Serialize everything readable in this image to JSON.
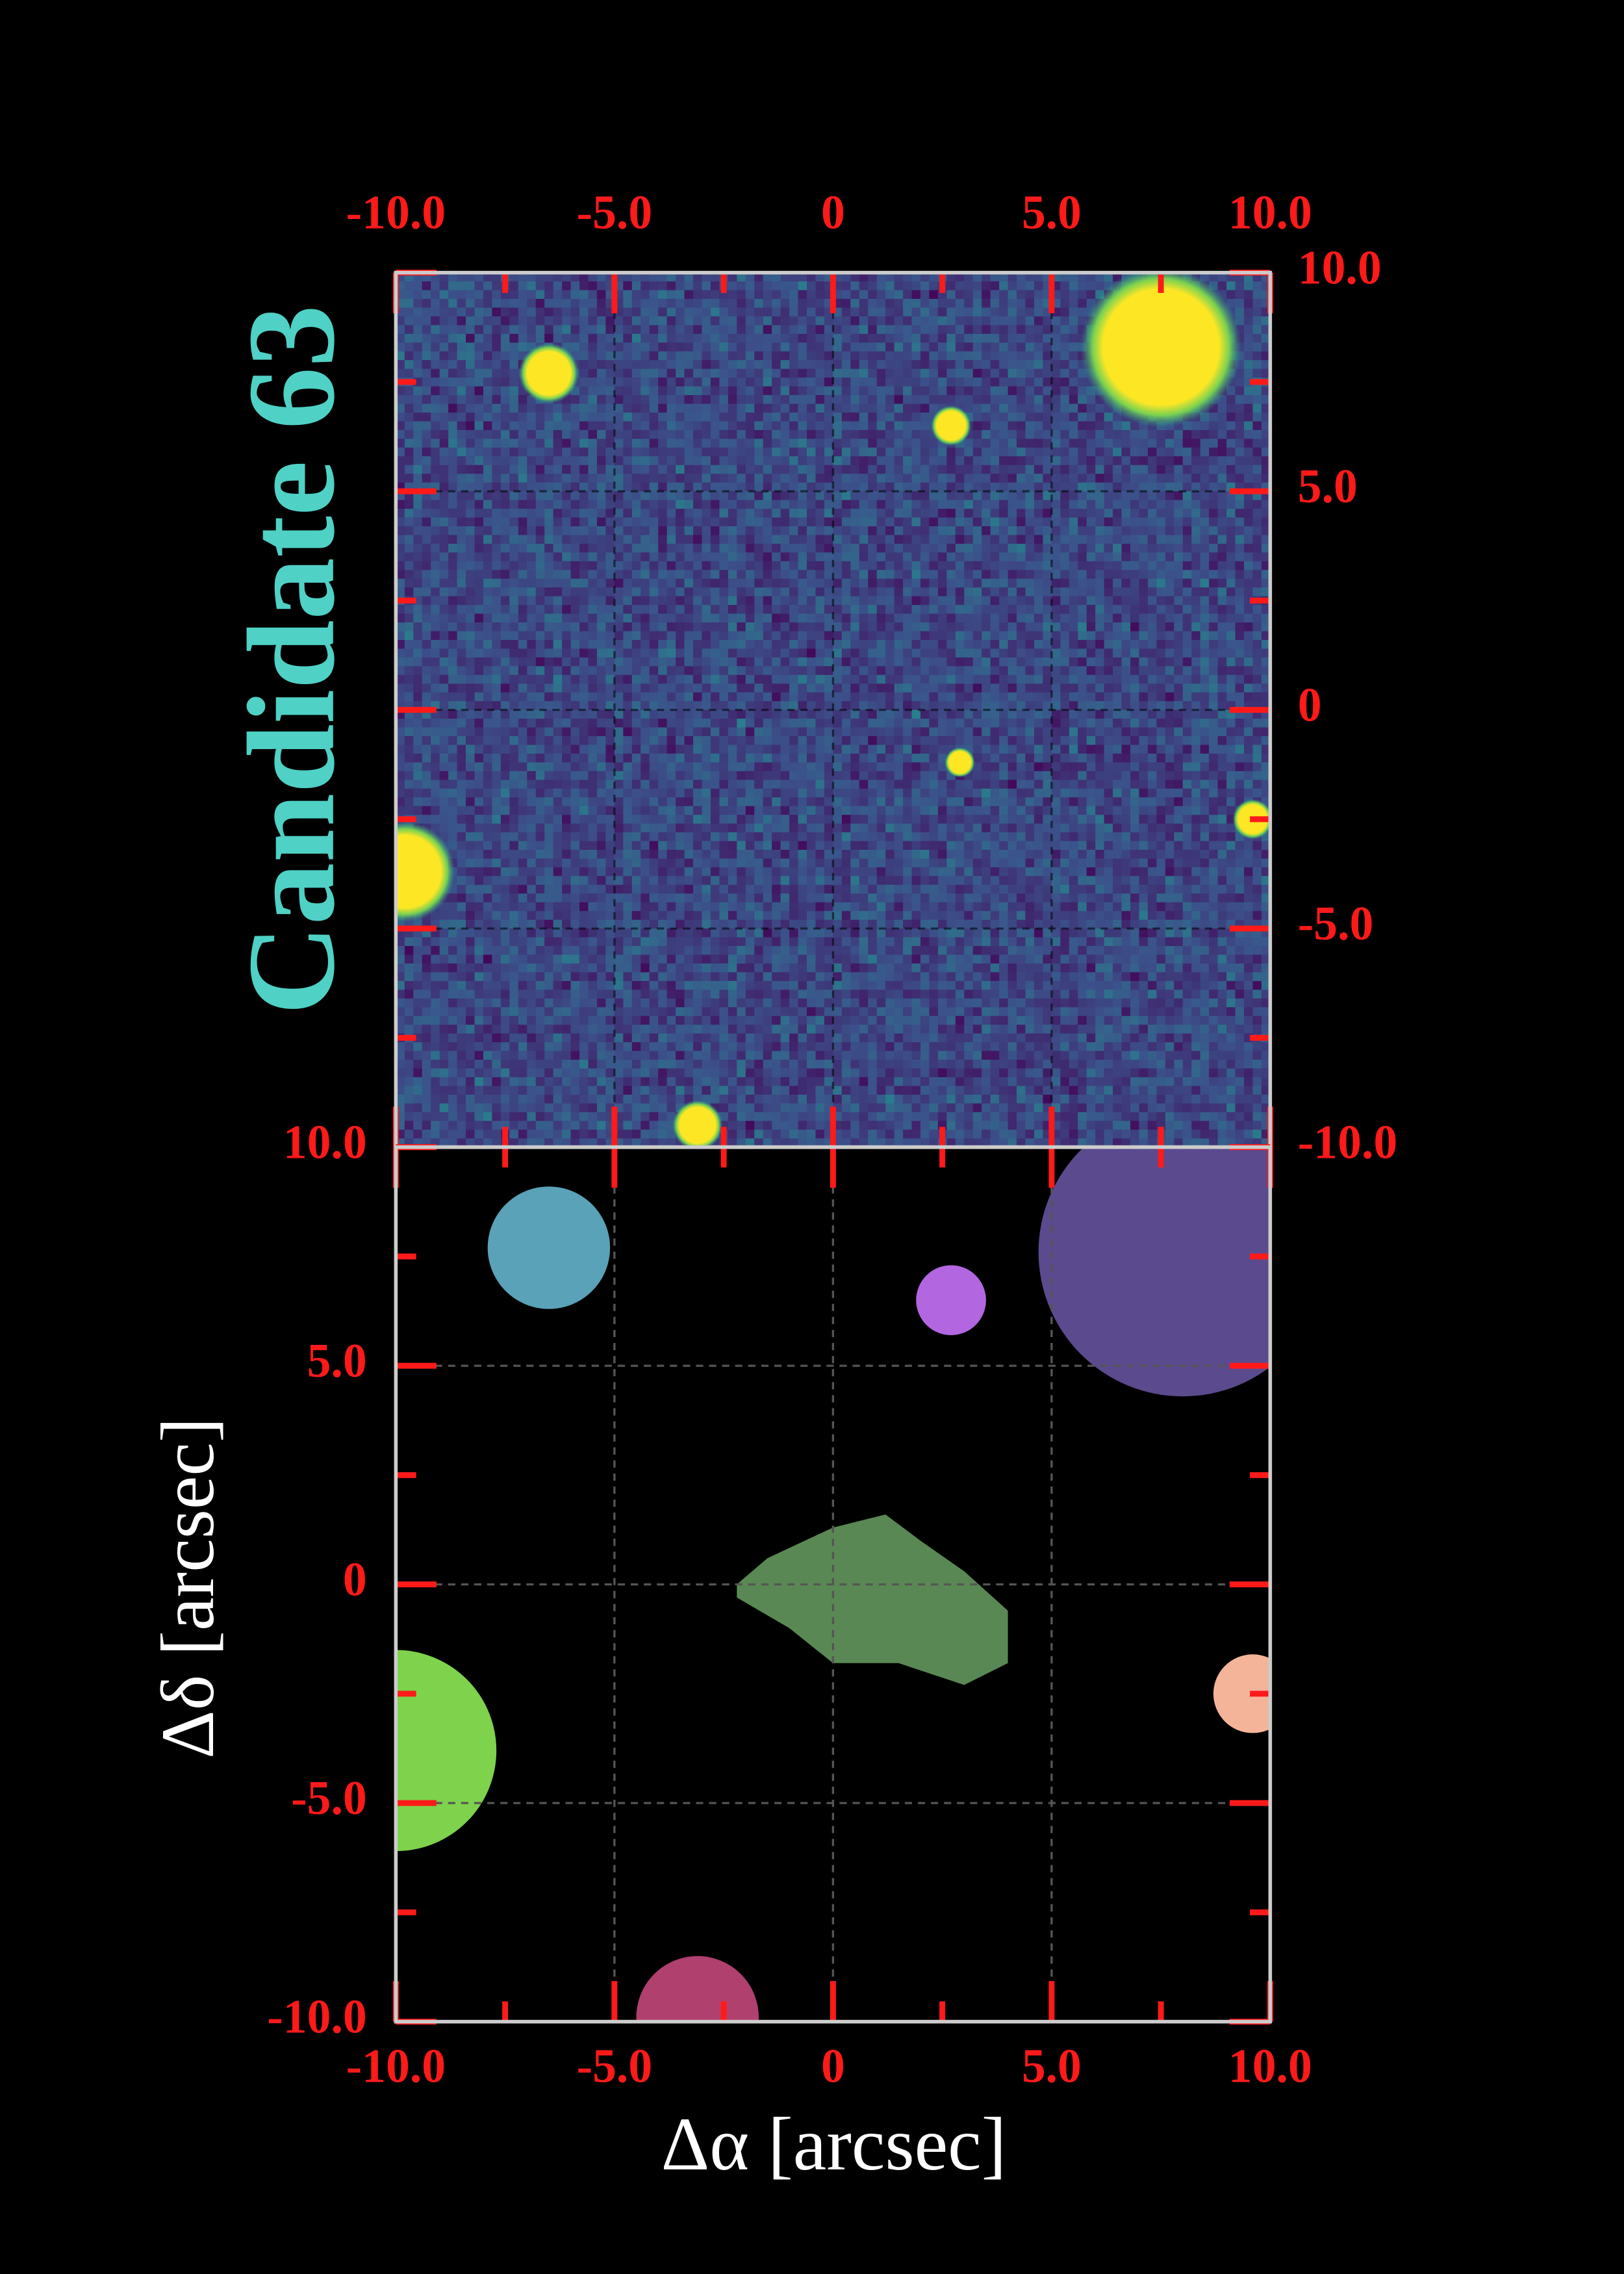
{
  "chart_data": [
    {
      "type": "image",
      "title": "Candidate 63",
      "xlim": [
        -10,
        10
      ],
      "ylim": [
        -10,
        10
      ],
      "xticks": [
        {
          "value": -10,
          "label": "-10.0"
        },
        {
          "value": -5,
          "label": "-5.0"
        },
        0,
        {
          "value": 5,
          "label": "5.0"
        },
        {
          "value": 10,
          "label": "10.0"
        }
      ],
      "yticks": [
        {
          "value": -10,
          "label": "-10.0"
        },
        {
          "value": -5,
          "label": "-5.0"
        },
        0,
        {
          "value": 5,
          "label": "5.0"
        },
        {
          "value": 10,
          "label": "10.0"
        }
      ],
      "minor_ticks": [
        -7.5,
        -2.5,
        2.5,
        7.5
      ],
      "grid": true,
      "title_color": "#4fd1c5",
      "tick_color": "#ff1a1a",
      "sources": [
        {
          "x": 7.5,
          "y": 8.3,
          "r": 1.6
        },
        {
          "x": -6.5,
          "y": 7.7,
          "r": 0.6
        },
        {
          "x": 2.7,
          "y": 6.5,
          "r": 0.4
        },
        {
          "x": -9.8,
          "y": -3.7,
          "r": 1.0
        },
        {
          "x": 9.6,
          "y": -2.5,
          "r": 0.4
        },
        {
          "x": -3.1,
          "y": -9.5,
          "r": 0.5
        },
        {
          "x": 2.9,
          "y": -1.2,
          "r": 0.3
        }
      ]
    },
    {
      "type": "segmentation",
      "xlabel": "Δα [arcsec]",
      "ylabel": "Δδ [arcsec]",
      "xlim": [
        -10,
        10
      ],
      "ylim": [
        -10,
        10
      ],
      "xticks": [
        {
          "value": -10,
          "label": "-10.0"
        },
        {
          "value": -5,
          "label": "-5.0"
        },
        0,
        {
          "value": 5,
          "label": "5.0"
        },
        {
          "value": 10,
          "label": "10.0"
        }
      ],
      "yticks": [
        {
          "value": -10,
          "label": "-10.0"
        },
        {
          "value": -5,
          "label": "-5.0"
        },
        0,
        {
          "value": 5,
          "label": "5.0"
        },
        {
          "value": 10,
          "label": "10.0"
        }
      ],
      "minor_ticks": [
        -7.5,
        -2.5,
        2.5,
        7.5
      ],
      "grid": true,
      "tick_color": "#ff1a1a",
      "segments": [
        {
          "x": -6.5,
          "y": 7.7,
          "r": 1.4,
          "color": "#5aa2b8"
        },
        {
          "x": 8.0,
          "y": 7.6,
          "r": 3.3,
          "color": "#5b4a8e"
        },
        {
          "x": 2.7,
          "y": 6.5,
          "r": 0.8,
          "color": "#b266e0"
        },
        {
          "x": -10.0,
          "y": -3.8,
          "r": 2.3,
          "color": "#7ed24c"
        },
        {
          "x": 9.6,
          "y": -2.5,
          "r": 0.9,
          "color": "#f4b49a"
        },
        {
          "x": -3.1,
          "y": -9.9,
          "r": 1.4,
          "color": "#b0406e"
        },
        {
          "color": "#5a8854",
          "points": [
            [
              -2.2,
              0
            ],
            [
              -1.5,
              0.6
            ],
            [
              0,
              1.3
            ],
            [
              1.2,
              1.6
            ],
            [
              2,
              1
            ],
            [
              3,
              0.3
            ],
            [
              4,
              -0.6
            ],
            [
              4,
              -1.8
            ],
            [
              3,
              -2.3
            ],
            [
              1.5,
              -1.8
            ],
            [
              0,
              -1.8
            ],
            [
              -1,
              -1
            ],
            [
              -2.2,
              -0.3
            ]
          ]
        }
      ]
    }
  ]
}
